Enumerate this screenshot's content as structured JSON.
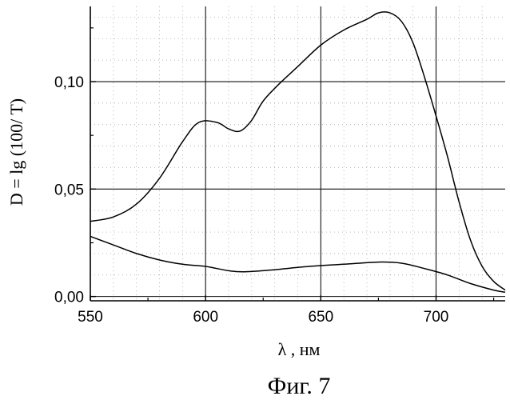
{
  "chart_data": {
    "type": "line",
    "xlabel": "λ , нм",
    "ylabel": "D = lg (100/ T)",
    "caption": "Фиг. 7",
    "xlim": [
      550,
      730
    ],
    "ylim": [
      -0.002,
      0.135
    ],
    "xticks": [
      550,
      600,
      650,
      700
    ],
    "xtick_labels": [
      "550",
      "600",
      "650",
      "700"
    ],
    "yticks": [
      0.0,
      0.05,
      0.1
    ],
    "ytick_labels": [
      "0,00",
      "0,05",
      "0,10"
    ],
    "grid": "major gridlines dark, minor grid dotted",
    "series": [
      {
        "points": [
          [
            550,
            0.035
          ],
          [
            560,
            0.037
          ],
          [
            570,
            0.043
          ],
          [
            580,
            0.055
          ],
          [
            590,
            0.072
          ],
          [
            597,
            0.081
          ],
          [
            605,
            0.081
          ],
          [
            610,
            0.078
          ],
          [
            615,
            0.077
          ],
          [
            620,
            0.082
          ],
          [
            625,
            0.091
          ],
          [
            632,
            0.099
          ],
          [
            640,
            0.107
          ],
          [
            650,
            0.117
          ],
          [
            660,
            0.124
          ],
          [
            670,
            0.129
          ],
          [
            675,
            0.132
          ],
          [
            680,
            0.132
          ],
          [
            685,
            0.128
          ],
          [
            690,
            0.118
          ],
          [
            695,
            0.102
          ],
          [
            700,
            0.084
          ],
          [
            705,
            0.065
          ],
          [
            710,
            0.044
          ],
          [
            715,
            0.026
          ],
          [
            720,
            0.014
          ],
          [
            725,
            0.007
          ],
          [
            730,
            0.003
          ]
        ]
      },
      {
        "points": [
          [
            550,
            0.028
          ],
          [
            560,
            0.024
          ],
          [
            570,
            0.02
          ],
          [
            580,
            0.017
          ],
          [
            590,
            0.015
          ],
          [
            600,
            0.014
          ],
          [
            610,
            0.012
          ],
          [
            617,
            0.0115
          ],
          [
            630,
            0.0125
          ],
          [
            645,
            0.014
          ],
          [
            660,
            0.015
          ],
          [
            675,
            0.016
          ],
          [
            685,
            0.0155
          ],
          [
            695,
            0.013
          ],
          [
            705,
            0.01
          ],
          [
            715,
            0.006
          ],
          [
            725,
            0.003
          ],
          [
            730,
            0.002
          ]
        ]
      }
    ]
  }
}
